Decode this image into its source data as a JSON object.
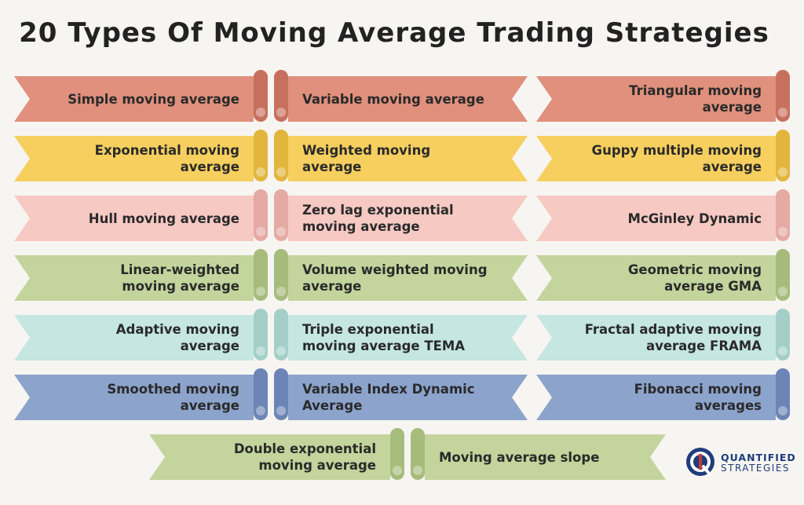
{
  "title": "20 Types Of Moving Average Trading Strategies",
  "colors": {
    "row1_strip": "#e0907c",
    "row1_roll": "#c8705e",
    "row2_strip": "#f6cf5e",
    "row2_roll": "#e2b53c",
    "row3_strip": "#f6c9c3",
    "row3_roll": "#e5aaa3",
    "row4_strip": "#c3d49c",
    "row4_roll": "#a7bc7c",
    "row5_strip": "#c5e6e1",
    "row5_roll": "#a3cfc8",
    "row6_strip": "#8ca3cc",
    "row6_roll": "#6c85b6",
    "row7_strip": "#c3d49c",
    "row7_roll": "#a7bc7c"
  },
  "strategies": [
    {
      "line1": "Simple moving average",
      "line2": ""
    },
    {
      "line1": "Variable moving average",
      "line2": ""
    },
    {
      "line1": "Triangular moving",
      "line2": "average"
    },
    {
      "line1": "Exponential moving",
      "line2": "average"
    },
    {
      "line1": "Weighted moving",
      "line2": "average"
    },
    {
      "line1": "Guppy multiple moving",
      "line2": "average"
    },
    {
      "line1": "Hull moving average",
      "line2": ""
    },
    {
      "line1": "Zero lag exponential",
      "line2": "moving average"
    },
    {
      "line1": "McGinley Dynamic",
      "line2": ""
    },
    {
      "line1": "Linear-weighted",
      "line2": "moving average"
    },
    {
      "line1": "Volume weighted moving",
      "line2": "average"
    },
    {
      "line1": "Geometric moving",
      "line2": "average GMA"
    },
    {
      "line1": "Adaptive moving",
      "line2": "average"
    },
    {
      "line1": "Triple exponential",
      "line2": "moving average TEMA"
    },
    {
      "line1": "Fractal adaptive moving",
      "line2": "average FRAMA"
    },
    {
      "line1": "Smoothed moving",
      "line2": "average"
    },
    {
      "line1": "Variable Index Dynamic",
      "line2": "Average"
    },
    {
      "line1": "Fibonacci moving",
      "line2": "averages"
    },
    {
      "line1": "Double exponential",
      "line2": "moving average"
    },
    {
      "line1": "Moving average slope",
      "line2": ""
    }
  ],
  "logo": {
    "letter": "Q",
    "line1": "QUANTIFIED",
    "line2": "STRATEGIES",
    "color": "#1e3d7a",
    "accent": "#c43a3a"
  }
}
